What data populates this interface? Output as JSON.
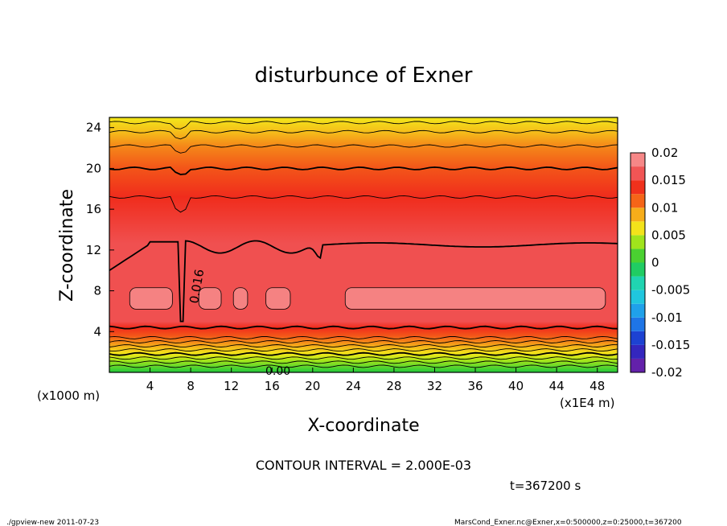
{
  "chart_data": {
    "type": "heatmap",
    "title": "disturbunce of Exner",
    "xlabel": "X-coordinate",
    "ylabel": "Z-coordinate",
    "x_unit_left": "(x1000 m)",
    "x_unit_right": "(x1E4 m)",
    "x_ticks": [
      "4",
      "8",
      "12",
      "16",
      "20",
      "24",
      "28",
      "32",
      "36",
      "40",
      "44",
      "48"
    ],
    "y_ticks": [
      "4",
      "8",
      "12",
      "16",
      "20",
      "24"
    ],
    "xlim": [
      0,
      50
    ],
    "ylim": [
      0,
      25
    ],
    "colorbar_ticks": [
      "0.02",
      "0.015",
      "0.01",
      "0.005",
      "0",
      "-0.005",
      "-0.01",
      "-0.015",
      "-0.02"
    ],
    "colorbar_range": [
      -0.02,
      0.02
    ],
    "contour_labels": [
      "0.016",
      "0.00"
    ],
    "contour_interval_text": "CONTOUR INTERVAL = 2.000E-03",
    "time_text": "t=367200 s",
    "profile_levels": [
      {
        "z": 0.0,
        "value": 0.0
      },
      {
        "z": 0.6,
        "value": 0.002
      },
      {
        "z": 1.2,
        "value": 0.004
      },
      {
        "z": 1.8,
        "value": 0.006
      },
      {
        "z": 2.4,
        "value": 0.008
      },
      {
        "z": 3.0,
        "value": 0.01
      },
      {
        "z": 3.6,
        "value": 0.012
      },
      {
        "z": 4.4,
        "value": 0.014
      },
      {
        "z": 5.0,
        "value": 0.016
      },
      {
        "z": 12.6,
        "value": 0.016
      },
      {
        "z": 17.2,
        "value": 0.014
      },
      {
        "z": 20.0,
        "value": 0.012
      },
      {
        "z": 22.2,
        "value": 0.01
      },
      {
        "z": 23.6,
        "value": 0.008
      },
      {
        "z": 25.0,
        "value": 0.006
      }
    ]
  },
  "footer": {
    "left": "./gpview-new   2011-07-23",
    "right": "MarsCond_Exner.nc@Exner,x=0:500000,z=0:25000,t=367200"
  },
  "colors": {
    "frame": "#000000",
    "background": "#ffffff"
  }
}
